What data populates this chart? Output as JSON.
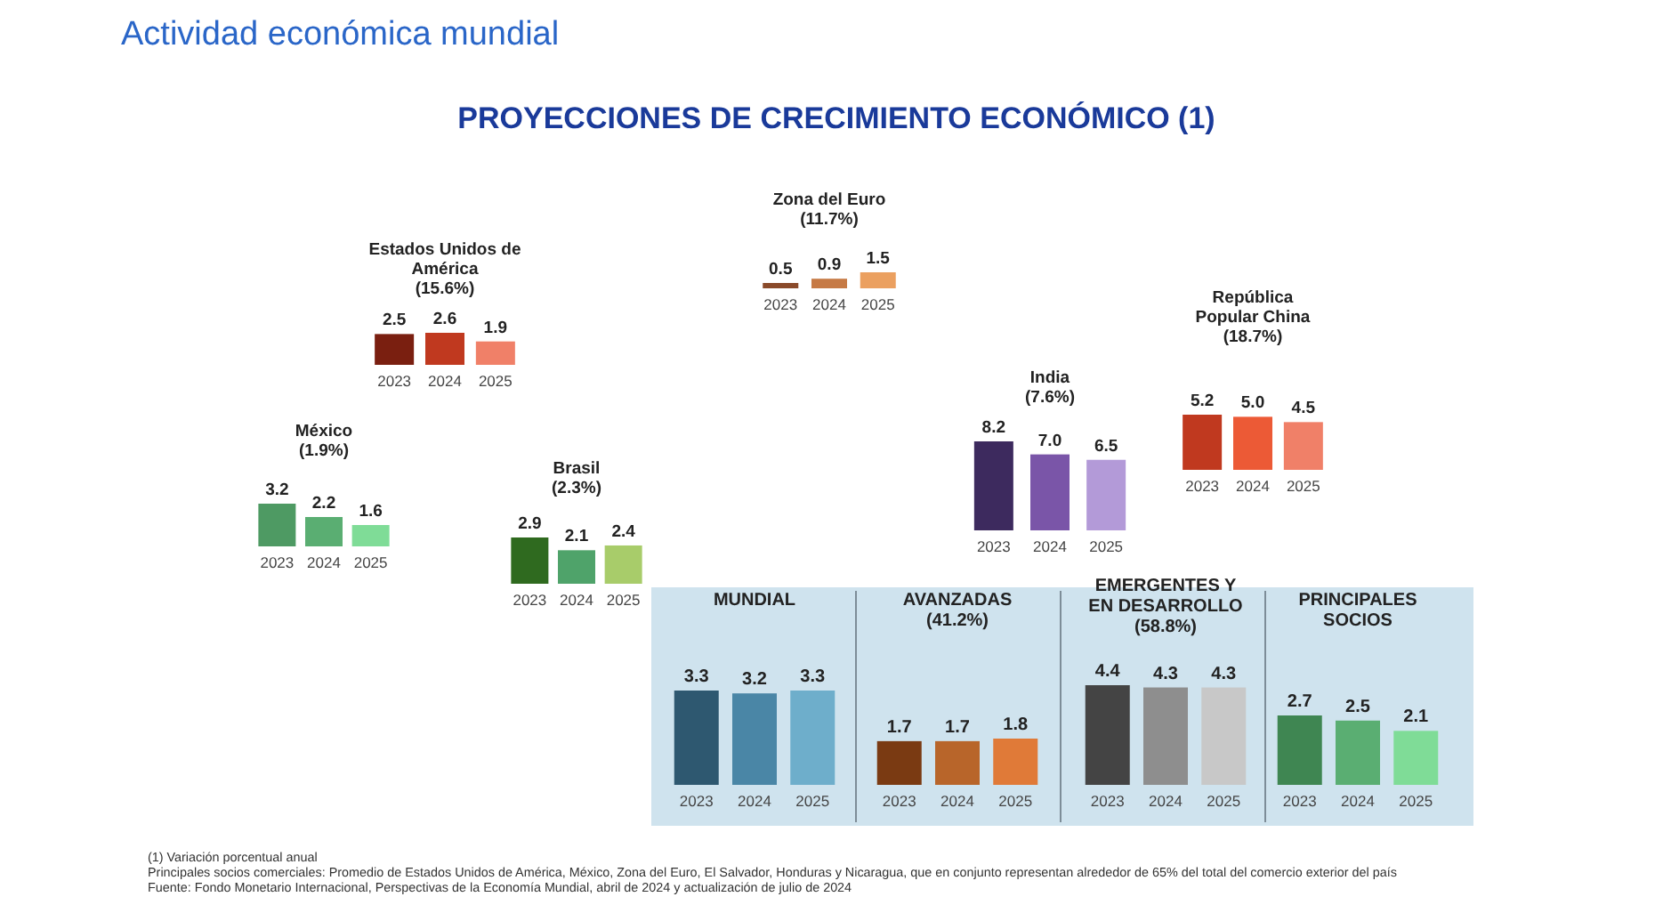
{
  "chart_data": [
    {
      "type": "other",
      "title": "Actividad económica mundial",
      "subtitle": "PROYECCIONES DE CRECIMIENTO ECONÓMICO (1)",
      "annotations": [
        "(1) Variación porcentual anual",
        "Principales socios comerciales: Promedio de Estados Unidos de América, México, Zona del Euro, El Salvador, Honduras y Nicaragua, que en conjunto representan alrededor de 65% del total del comercio exterior del país",
        "Fuente: Fondo Monetario Internacional, Perspectivas de la Economía Mundial, abril de 2024 y actualización de julio de 2024"
      ]
    },
    {
      "type": "bar",
      "title": "Estados Unidos de América",
      "subtitle": "(15.6%)",
      "categories": [
        "2023",
        "2024",
        "2025"
      ],
      "values": [
        2.5,
        2.6,
        1.9
      ],
      "colors": [
        "#7a1f10",
        "#c0391f",
        "#f08068"
      ],
      "value_labels": [
        "2.5",
        "2.6",
        "1.9"
      ]
    },
    {
      "type": "bar",
      "title": "Zona del Euro",
      "subtitle": "(11.7%)",
      "categories": [
        "2023",
        "2024",
        "2025"
      ],
      "values": [
        0.5,
        0.9,
        1.5
      ],
      "colors": [
        "#8a4a2a",
        "#c67a45",
        "#eba060"
      ],
      "value_labels": [
        "0.5",
        "0.9",
        "1.5"
      ]
    },
    {
      "type": "bar",
      "title": "México",
      "subtitle": "(1.9%)",
      "categories": [
        "2023",
        "2024",
        "2025"
      ],
      "values": [
        3.2,
        2.2,
        1.6
      ],
      "colors": [
        "#4e9a63",
        "#5aae72",
        "#7fdc97"
      ],
      "value_labels": [
        "3.2",
        "2.2",
        "1.6"
      ]
    },
    {
      "type": "bar",
      "title": "Brasil",
      "subtitle": "(2.3%)",
      "categories": [
        "2023",
        "2024",
        "2025"
      ],
      "values": [
        2.9,
        2.1,
        2.4
      ],
      "colors": [
        "#2f6a1f",
        "#4fa36a",
        "#a8cc6a"
      ],
      "value_labels": [
        "2.9",
        "2.1",
        "2.4"
      ]
    },
    {
      "type": "bar",
      "title": "India",
      "subtitle": "(7.6%)",
      "categories": [
        "2023",
        "2024",
        "2025"
      ],
      "values": [
        8.2,
        7.0,
        6.5
      ],
      "colors": [
        "#3d2a5e",
        "#7a55a8",
        "#b39ad8"
      ],
      "value_labels": [
        "8.2",
        "7.0",
        "6.5"
      ]
    },
    {
      "type": "bar",
      "title": "República Popular China",
      "subtitle": "(18.7%)",
      "categories": [
        "2023",
        "2024",
        "2025"
      ],
      "values": [
        5.2,
        5.0,
        4.5
      ],
      "colors": [
        "#c0391f",
        "#ec5a36",
        "#f08068"
      ],
      "value_labels": [
        "5.2",
        "5.0",
        "4.5"
      ]
    },
    {
      "type": "bar",
      "title": "MUNDIAL",
      "categories": [
        "2023",
        "2024",
        "2025"
      ],
      "values": [
        3.3,
        3.2,
        3.3
      ],
      "colors": [
        "#2e5870",
        "#4a86a6",
        "#6eaecb"
      ],
      "value_labels": [
        "3.3",
        "3.2",
        "3.3"
      ]
    },
    {
      "type": "bar",
      "title": "AVANZADAS",
      "subtitle": "(41.2%)",
      "categories": [
        "2023",
        "2024",
        "2025"
      ],
      "values": [
        1.7,
        1.7,
        1.8
      ],
      "colors": [
        "#7a3a12",
        "#b8652a",
        "#e07a38"
      ],
      "value_labels": [
        "1.7",
        "1.7",
        "1.8"
      ]
    },
    {
      "type": "bar",
      "title": "EMERGENTES Y EN DESARROLLO",
      "subtitle": "(58.8%)",
      "categories": [
        "2023",
        "2024",
        "2025"
      ],
      "values": [
        4.4,
        4.3,
        4.3
      ],
      "colors": [
        "#444444",
        "#8e8e8e",
        "#c8c8c8"
      ],
      "value_labels": [
        "4.4",
        "4.3",
        "4.3"
      ]
    },
    {
      "type": "bar",
      "title": "PRINCIPALES SOCIOS",
      "categories": [
        "2023",
        "2024",
        "2025"
      ],
      "values": [
        2.7,
        2.5,
        2.1
      ],
      "colors": [
        "#3f8652",
        "#5aae72",
        "#7fdc97"
      ],
      "value_labels": [
        "2.7",
        "2.5",
        "2.1"
      ]
    }
  ]
}
